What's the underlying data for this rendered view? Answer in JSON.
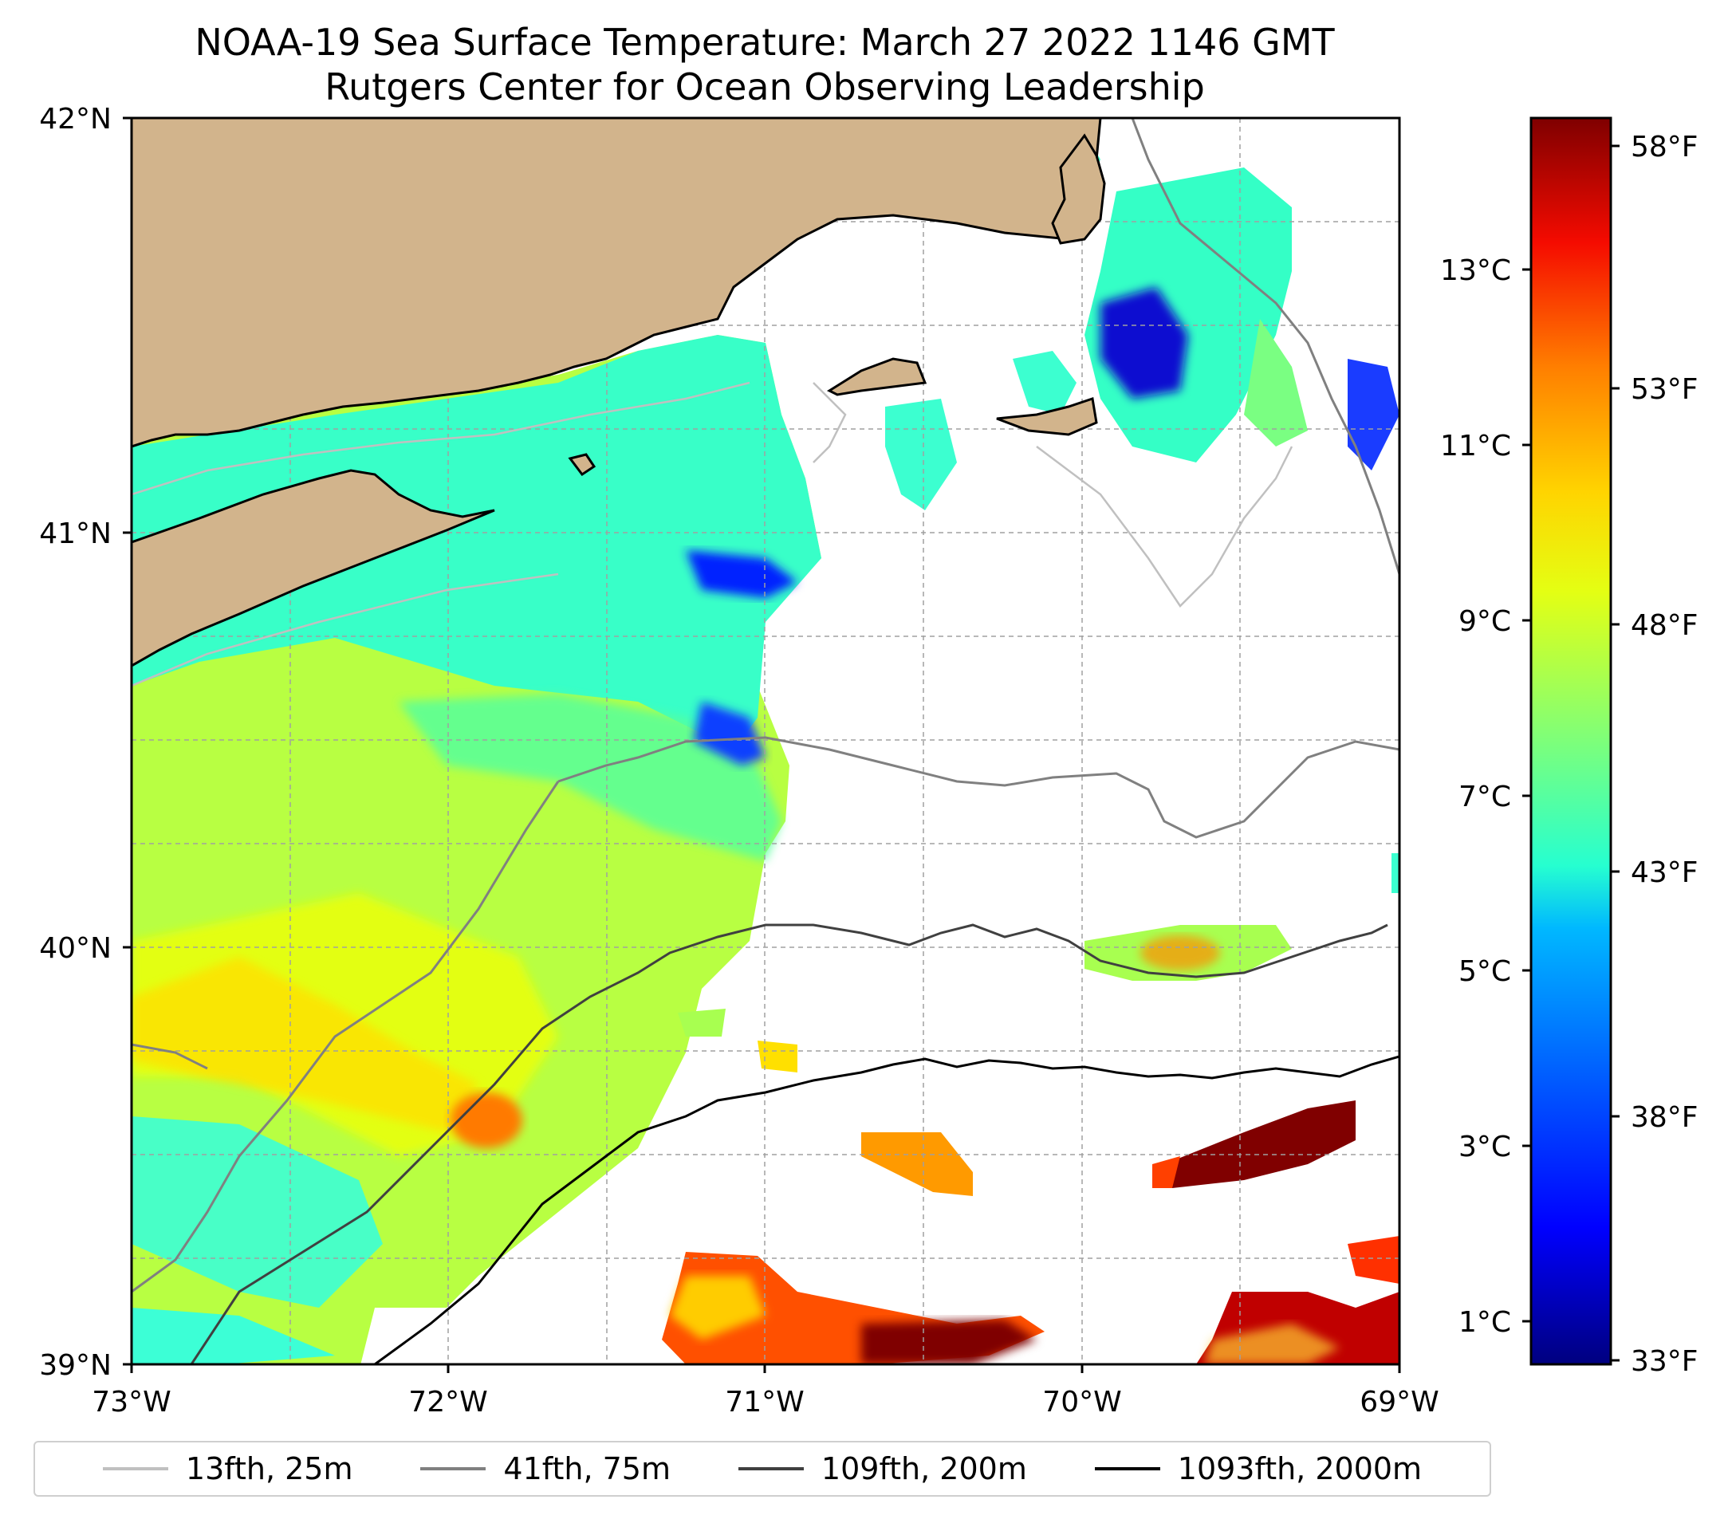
{
  "title": {
    "line1": "NOAA-19 Sea Surface Temperature: March 27 2022 1146 GMT",
    "line2": "Rutgers Center for Ocean Observing Leadership"
  },
  "map": {
    "lon_range": [
      -73,
      -69
    ],
    "lat_range": [
      39,
      42
    ],
    "x_ticks": [
      "73°W",
      "72°W",
      "71°W",
      "70°W",
      "69°W"
    ],
    "y_ticks": [
      "42°N",
      "41°N",
      "40°N",
      "39°N"
    ],
    "gridlines": true,
    "land_color": "#d2b48c"
  },
  "colorbar": {
    "colormap": "jet",
    "celsius_ticks": [
      "13°C",
      "11°C",
      "9°C",
      "7°C",
      "5°C",
      "3°C",
      "1°C"
    ],
    "fahrenheit_ticks": [
      "58°F",
      "53°F",
      "48°F",
      "43°F",
      "38°F",
      "33°F"
    ],
    "range_f": [
      33,
      58.5
    ]
  },
  "legend": {
    "placement": "bottom",
    "items": [
      {
        "label": "13fth, 25m",
        "color": "#c0c0c0"
      },
      {
        "label": "41fth, 75m",
        "color": "#808080"
      },
      {
        "label": "109fth, 200m",
        "color": "#404040"
      },
      {
        "label": "1093fth, 2000m",
        "color": "#000000"
      }
    ]
  }
}
